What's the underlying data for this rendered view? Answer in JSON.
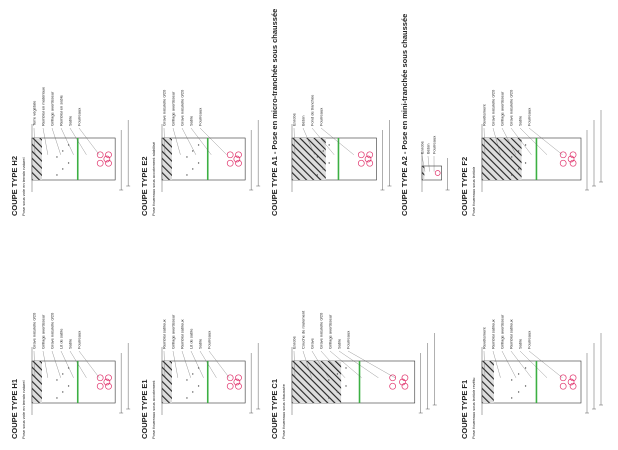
{
  "panels": [
    {
      "title": "COUPE TYPE H2",
      "subtitle": "Pose sous voie en terrain naturel",
      "labels": [
        "Terre végétale",
        "Remblai en matériaux",
        "Grillage avertisseur",
        "Remblai en sable",
        "Sable",
        "Fourreaux"
      ]
    },
    {
      "title": "COUPE TYPE H1",
      "subtitle": "Pose sous voie en terrain naturel",
      "labels": [
        "Grave naturelle 0/20",
        "Grillage avertisseur",
        "Grave naturelle 0/20",
        "Lit de sable",
        "Sable",
        "Fourreaux"
      ]
    },
    {
      "title": "COUPE TYPE E2",
      "subtitle": "Pose fourreaux sous accotement stabilisé",
      "labels": [
        "Grave naturelle 0/20",
        "Grillage avertisseur",
        "Grave naturelle 0/20",
        "Sable",
        "Fourreaux"
      ]
    },
    {
      "title": "COUPE TYPE E1",
      "subtitle": "Pose fourreaux sous accotement",
      "labels": [
        "Remblai sableux",
        "Grillage avertisseur",
        "Remblai sableux",
        "Lit de sable",
        "Sable",
        "Fourreaux"
      ]
    },
    {
      "title": "COUPE TYPE A1 - Pose en micro-tranchée sous chaussée",
      "subtitle": "",
      "labels": [
        "Enrobé",
        "Béton",
        "Fond de tranchée",
        "Fourreaux"
      ]
    },
    {
      "title": "COUPE TYPE A2 - Pose en mini-tranchée sous chaussée",
      "subtitle": "",
      "labels": [
        "Enrobé",
        "Béton",
        "Fourreaux"
      ]
    },
    {
      "title": "COUPE TYPE C1",
      "subtitle": "Pose fourreaux sous chaussée",
      "labels": [
        "Enrobé",
        "Couche de roulement",
        "Grave",
        "Grave naturelle 0/20",
        "Grillage avertisseur",
        "Sable",
        "Fourreaux"
      ]
    },
    {
      "title": "COUPE TYPE F2",
      "subtitle": "Pose fourreaux sous trottoir",
      "labels": [
        "Revêtement",
        "Grave naturelle 0/20",
        "Grillage avertisseur",
        "Grave naturelle 0/20",
        "Sable",
        "Fourreaux"
      ]
    },
    {
      "title": "COUPE TYPE F1",
      "subtitle": "Pose fourreaux sous trottoir revêtu",
      "labels": [
        "Revêtement",
        "Remblai sableux",
        "Grillage avertisseur",
        "Remblai sableux",
        "Sable",
        "Fourreaux"
      ]
    }
  ]
}
